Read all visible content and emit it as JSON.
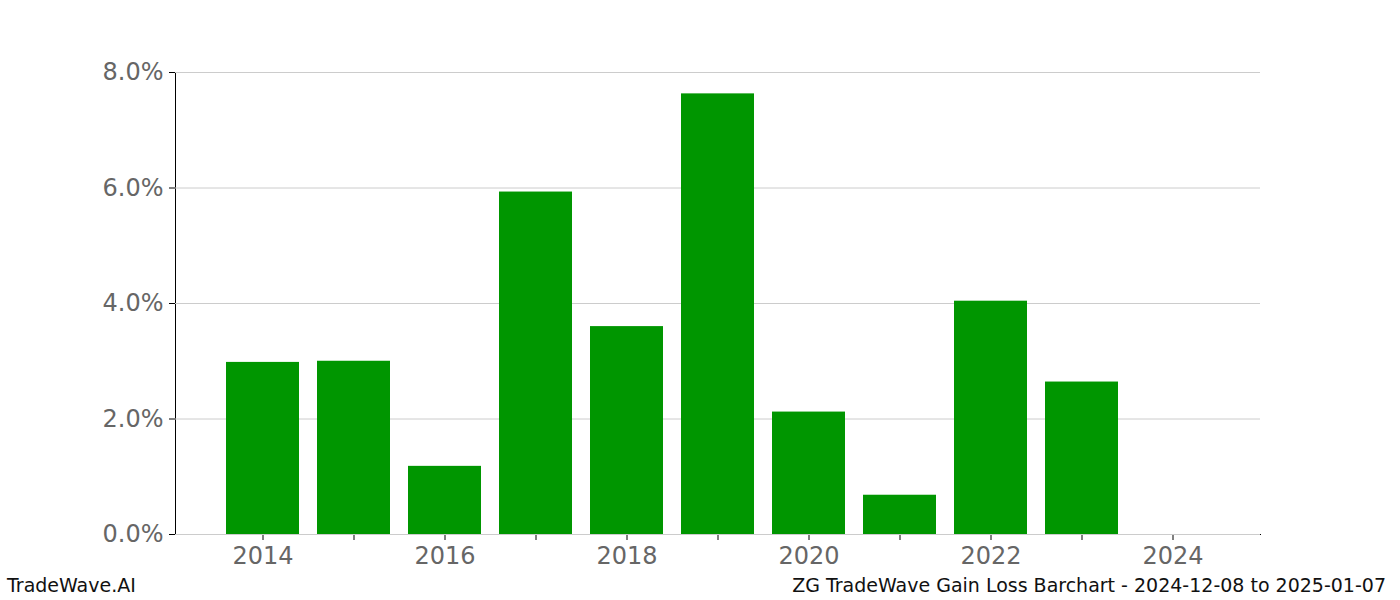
{
  "chart_data": {
    "type": "bar",
    "annotations": [
      "TradeWave.AI",
      "ZG TradeWave Gain Loss Barchart - 2024-12-08 to 2025-01-07"
    ],
    "categories": [
      "2014",
      null,
      "2016",
      null,
      "2018",
      null,
      "2020",
      null,
      "2022",
      null,
      "2024"
    ],
    "values": [
      2.98,
      3.0,
      1.18,
      5.93,
      3.6,
      7.63,
      2.12,
      0.68,
      4.04,
      2.64,
      0
    ],
    "color": "#009600",
    "ylim": [
      0,
      8
    ],
    "yticks": [
      {
        "value": 0,
        "label": "0.0%"
      },
      {
        "value": 2,
        "label": "2.0%"
      },
      {
        "value": 4,
        "label": "4.0%"
      },
      {
        "value": 6,
        "label": "6.0%"
      },
      {
        "value": 8,
        "label": "8.0%"
      }
    ],
    "grid": true
  }
}
